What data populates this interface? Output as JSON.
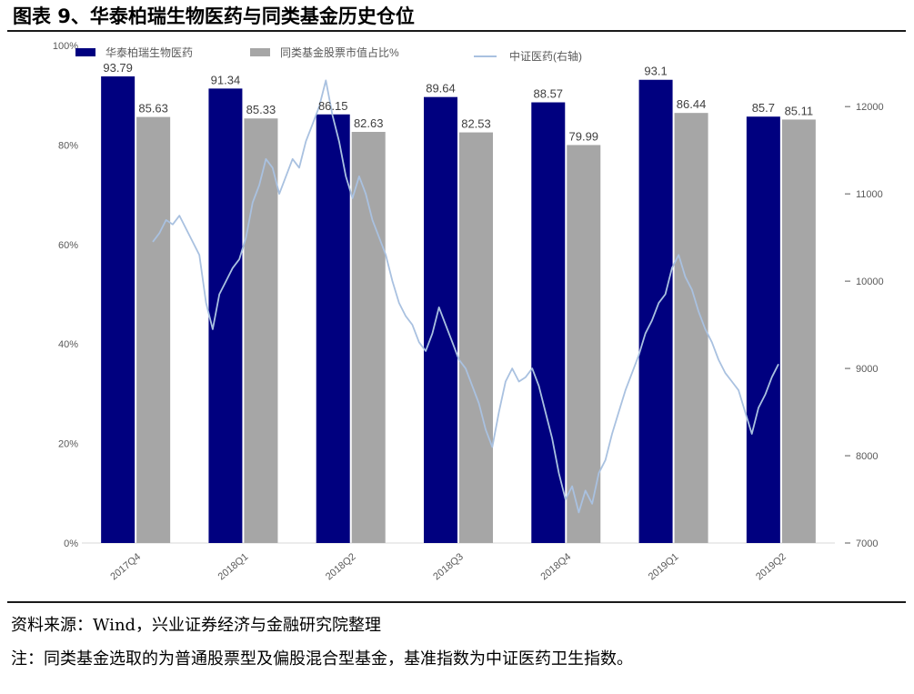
{
  "header": {
    "title": "图表 9、华泰柏瑞生物医药与同类基金历史仓位"
  },
  "footer": {
    "source": "资料来源：Wind，兴业证券经济与金融研究院整理",
    "note": "注：同类基金选取的为普通股票型及偏股混合型基金，基准指数为中证医药卫生指数。"
  },
  "chart_data": {
    "type": "bar",
    "categories": [
      "2017Q4",
      "2018Q1",
      "2018Q2",
      "2018Q3",
      "2018Q4",
      "2019Q1",
      "2019Q2"
    ],
    "series": [
      {
        "name": "华泰柏瑞生物医药",
        "values": [
          93.79,
          91.34,
          86.15,
          89.64,
          88.57,
          93.1,
          85.7
        ],
        "labels": [
          "93.79",
          "91.34",
          "86.15",
          "89.64",
          "88.57",
          "93.1",
          "85.7"
        ],
        "color": "#00007f"
      },
      {
        "name": "同类基金股票市值占比%",
        "values": [
          85.63,
          85.33,
          82.63,
          82.53,
          79.99,
          86.44,
          85.11
        ],
        "labels": [
          "85.63",
          "85.33",
          "82.63",
          "82.53",
          "79.99",
          "86.44",
          "85.11"
        ],
        "color": "#a6a6a6"
      }
    ],
    "line": {
      "name": "中证医药(右轴)",
      "color": "#a9c1e0",
      "values": [
        10450,
        10550,
        10700,
        10650,
        10750,
        10600,
        10450,
        10300,
        9750,
        9450,
        9850,
        10000,
        10150,
        10250,
        10500,
        10900,
        11100,
        11400,
        11300,
        11000,
        11200,
        11400,
        11300,
        11600,
        11800,
        12000,
        12300,
        11900,
        11600,
        11200,
        10950,
        11200,
        11000,
        10700,
        10500,
        10300,
        10000,
        9750,
        9600,
        9500,
        9300,
        9200,
        9400,
        9700,
        9500,
        9300,
        9100,
        9000,
        8800,
        8600,
        8300,
        8100,
        8500,
        8850,
        9000,
        8850,
        8900,
        9000,
        8800,
        8500,
        8200,
        7800,
        7500,
        7650,
        7350,
        7600,
        7450,
        7800,
        7950,
        8250,
        8500,
        8750,
        8950,
        9150,
        9400,
        9550,
        9750,
        9850,
        10150,
        10300,
        10050,
        9900,
        9650,
        9450,
        9300,
        9100,
        8950,
        8850,
        8750,
        8500,
        8250,
        8550,
        8700,
        8900,
        9050
      ]
    },
    "y_left": {
      "min": 0,
      "max": 100,
      "ticks": [
        "0%",
        "20%",
        "40%",
        "60%",
        "80%",
        "100%"
      ]
    },
    "y_right": {
      "min": 7000,
      "max": 12700,
      "ticks": [
        "7000",
        "8000",
        "9000",
        "10000",
        "11000",
        "12000"
      ]
    },
    "legend": "top",
    "grid": false
  }
}
